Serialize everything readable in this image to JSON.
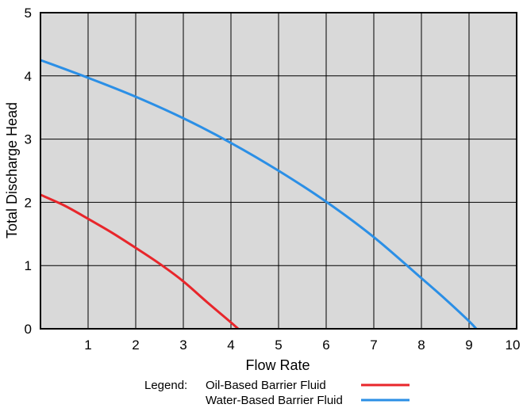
{
  "chart_data": {
    "type": "line",
    "xlabel": "Flow Rate",
    "ylabel": "Total Discharge Head",
    "xlim": [
      0,
      10
    ],
    "ylim": [
      0,
      5
    ],
    "x_ticks": [
      "1",
      "2",
      "3",
      "4",
      "5",
      "6",
      "7",
      "8",
      "9",
      "10"
    ],
    "y_ticks": [
      "0",
      "1",
      "2",
      "3",
      "4",
      "5"
    ],
    "grid": true,
    "plot_background": "#d9d9d9",
    "legend": {
      "title": "Legend:",
      "placement": "bottom-center"
    },
    "series": [
      {
        "name": "Oil-Based Barrier Fluid",
        "color": "#e8262b",
        "x": [
          0,
          0.5,
          1,
          1.5,
          2,
          2.5,
          3,
          3.5,
          4,
          4.15
        ],
        "y": [
          2.12,
          1.95,
          1.74,
          1.52,
          1.28,
          1.03,
          0.75,
          0.42,
          0.1,
          0
        ]
      },
      {
        "name": "Water-Based Barrier Fluid",
        "color": "#2b8fe6",
        "x": [
          0,
          1,
          2,
          3,
          4,
          5,
          6,
          7,
          8,
          8.5,
          9,
          9.15
        ],
        "y": [
          4.25,
          3.97,
          3.67,
          3.33,
          2.94,
          2.5,
          2.01,
          1.45,
          0.8,
          0.47,
          0.12,
          0
        ]
      }
    ]
  }
}
